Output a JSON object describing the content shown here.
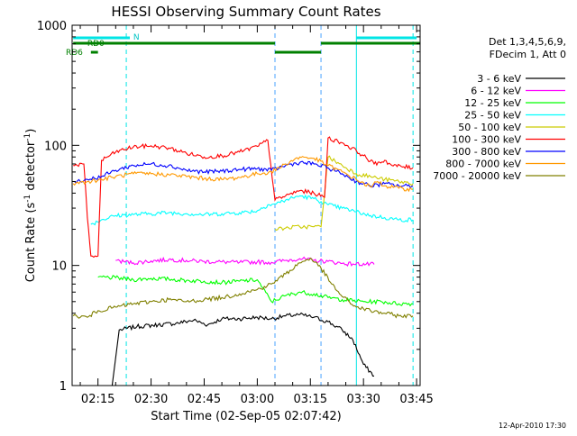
{
  "chart_data": {
    "type": "line",
    "title": "HESSI Observing Summary Count Rates",
    "xlabel": "Start Time (02-Sep-05 02:07:42)",
    "ylabel_main": "Count Rate (s",
    "ylabel_sup1": "-1",
    "ylabel_mid": " detector",
    "ylabel_sup2": "-1",
    "ylabel_end": ")",
    "yscale": "log",
    "xlim": [
      "02:07:42",
      "03:46:00"
    ],
    "ylim": [
      1,
      1000
    ],
    "x_ticks": [
      "02:15",
      "02:30",
      "02:45",
      "03:00",
      "03:15",
      "03:30",
      "03:45"
    ],
    "y_ticks": [
      "1",
      "10",
      "100",
      "1000"
    ],
    "legend_header": [
      "Det 1,3,4,5,6,9,",
      "FDecim 1, Att 0"
    ],
    "timestamp": "12-Apr-2010 17:30",
    "flags": {
      "labels": {
        "N": "N",
        "RD0": "RD0",
        "RD6": "RD6"
      },
      "n_bars": [
        [
          "02:08",
          "02:24"
        ],
        [
          "03:28",
          "03:45"
        ]
      ],
      "rd0_bars": [
        [
          "02:08",
          "03:05"
        ],
        [
          "03:18",
          "03:46"
        ]
      ],
      "rd6_bars": [
        [
          "02:13",
          "02:15"
        ],
        [
          "03:05",
          "03:18"
        ]
      ]
    },
    "vlines": {
      "solid": [
        "02:07:42",
        "03:28"
      ],
      "dashed": [
        "02:23",
        "03:44"
      ],
      "blue_dashed": [
        "03:05",
        "03:18"
      ]
    },
    "series": [
      {
        "name": "3 - 6 keV",
        "color": "#000000",
        "points": [
          [
            "02:19",
            0.0
          ],
          [
            "02:21",
            2.9
          ],
          [
            "02:26",
            3.1
          ],
          [
            "02:32",
            3.2
          ],
          [
            "02:37",
            3.3
          ],
          [
            "02:42",
            3.5
          ],
          [
            "02:46",
            3.2
          ],
          [
            "02:50",
            3.6
          ],
          [
            "02:55",
            3.6
          ],
          [
            "03:00",
            3.7
          ],
          [
            "03:04",
            3.6
          ],
          [
            "03:08",
            3.8
          ],
          [
            "03:12",
            3.9
          ],
          [
            "03:16",
            3.7
          ],
          [
            "03:20",
            3.4
          ],
          [
            "03:24",
            2.9
          ],
          [
            "03:27",
            2.4
          ],
          [
            "03:30",
            1.5
          ],
          [
            "03:33",
            1.2
          ]
        ]
      },
      {
        "name": "6 - 12 keV",
        "color": "#ff00ff",
        "points": [
          [
            "02:20",
            11.0
          ],
          [
            "02:25",
            10.5
          ],
          [
            "02:30",
            10.9
          ],
          [
            "02:35",
            11.2
          ],
          [
            "02:40",
            11.0
          ],
          [
            "02:45",
            10.8
          ],
          [
            "02:50",
            10.7
          ],
          [
            "02:55",
            10.6
          ],
          [
            "03:00",
            10.7
          ],
          [
            "03:04",
            10.6
          ],
          [
            "03:08",
            11.0
          ],
          [
            "03:12",
            11.4
          ],
          [
            "03:16",
            11.0
          ],
          [
            "03:20",
            10.8
          ],
          [
            "03:24",
            10.4
          ],
          [
            "03:27",
            10.3
          ],
          [
            "03:33",
            10.2
          ]
        ]
      },
      {
        "name": "12 - 25 keV",
        "color": "#00ff00",
        "points": [
          [
            "02:15",
            8.0
          ],
          [
            "02:20",
            7.9
          ],
          [
            "02:25",
            7.6
          ],
          [
            "02:30",
            7.8
          ],
          [
            "02:35",
            7.7
          ],
          [
            "02:40",
            7.5
          ],
          [
            "02:45",
            7.4
          ],
          [
            "02:50",
            7.2
          ],
          [
            "02:55",
            7.4
          ],
          [
            "03:00",
            7.6
          ],
          [
            "03:04",
            5.0
          ],
          [
            "03:08",
            5.6
          ],
          [
            "03:12",
            6.0
          ],
          [
            "03:16",
            5.8
          ],
          [
            "03:20",
            5.4
          ],
          [
            "03:24",
            5.2
          ],
          [
            "03:30",
            5.0
          ],
          [
            "03:35",
            5.0
          ],
          [
            "03:40",
            4.8
          ],
          [
            "03:44",
            4.8
          ]
        ]
      },
      {
        "name": "25 - 50 keV",
        "color": "#00ffff",
        "points": [
          [
            "02:13",
            22.0
          ],
          [
            "02:16",
            24.0
          ],
          [
            "02:20",
            26.0
          ],
          [
            "02:25",
            26.5
          ],
          [
            "02:30",
            27.0
          ],
          [
            "02:35",
            27.5
          ],
          [
            "02:40",
            27.0
          ],
          [
            "02:45",
            26.5
          ],
          [
            "02:50",
            27.0
          ],
          [
            "02:55",
            27.5
          ],
          [
            "03:00",
            28.5
          ],
          [
            "03:03",
            32.0
          ],
          [
            "03:05",
            32.5
          ],
          [
            "03:08",
            35.0
          ],
          [
            "03:12",
            38.0
          ],
          [
            "03:16",
            36.0
          ],
          [
            "03:18",
            34.0
          ],
          [
            "03:20",
            32.0
          ],
          [
            "03:24",
            30.0
          ],
          [
            "03:28",
            28.0
          ],
          [
            "03:32",
            26.0
          ],
          [
            "03:36",
            25.0
          ],
          [
            "03:40",
            24.0
          ],
          [
            "03:44",
            24.0
          ]
        ]
      },
      {
        "name": "50 - 100 keV",
        "color": "#cccc00",
        "points": [
          [
            "03:05",
            20.0
          ],
          [
            "03:08",
            20.5
          ],
          [
            "03:12",
            21.0
          ],
          [
            "03:16",
            21.0
          ],
          [
            "03:18",
            21.0
          ],
          [
            "03:20",
            80.0
          ],
          [
            "03:24",
            68.0
          ],
          [
            "03:28",
            58.0
          ],
          [
            "03:32",
            55.0
          ],
          [
            "03:36",
            52.0
          ],
          [
            "03:40",
            50.0
          ],
          [
            "03:44",
            48.0
          ]
        ]
      },
      {
        "name": "100 - 300 keV",
        "color": "#ff0000",
        "points": [
          [
            "02:08",
            68.0
          ],
          [
            "02:11",
            70.0
          ],
          [
            "02:12",
            25.0
          ],
          [
            "02:13",
            12.0
          ],
          [
            "02:15",
            12.0
          ],
          [
            "02:16",
            75.0
          ],
          [
            "02:20",
            88.0
          ],
          [
            "02:25",
            97.0
          ],
          [
            "02:30",
            99.0
          ],
          [
            "02:35",
            95.0
          ],
          [
            "02:40",
            86.0
          ],
          [
            "02:45",
            80.0
          ],
          [
            "02:50",
            82.0
          ],
          [
            "02:55",
            88.0
          ],
          [
            "03:00",
            98.0
          ],
          [
            "03:03",
            110.0
          ],
          [
            "03:05",
            35.0
          ],
          [
            "03:08",
            38.0
          ],
          [
            "03:12",
            42.0
          ],
          [
            "03:16",
            40.0
          ],
          [
            "03:19",
            37.0
          ],
          [
            "03:20",
            115.0
          ],
          [
            "03:24",
            105.0
          ],
          [
            "03:28",
            90.0
          ],
          [
            "03:30",
            82.0
          ],
          [
            "03:33",
            70.0
          ],
          [
            "03:36",
            75.0
          ],
          [
            "03:38",
            68.0
          ],
          [
            "03:44",
            65.0
          ]
        ]
      },
      {
        "name": "300 - 800 keV",
        "color": "#0000ff",
        "points": [
          [
            "02:08",
            50.0
          ],
          [
            "02:12",
            52.0
          ],
          [
            "02:16",
            55.0
          ],
          [
            "02:20",
            62.0
          ],
          [
            "02:25",
            68.0
          ],
          [
            "02:30",
            70.0
          ],
          [
            "02:35",
            68.0
          ],
          [
            "02:40",
            62.0
          ],
          [
            "02:45",
            60.0
          ],
          [
            "02:50",
            61.0
          ],
          [
            "02:55",
            63.0
          ],
          [
            "03:00",
            64.0
          ],
          [
            "03:04",
            62.0
          ],
          [
            "03:08",
            68.0
          ],
          [
            "03:12",
            72.0
          ],
          [
            "03:16",
            70.0
          ],
          [
            "03:20",
            65.0
          ],
          [
            "03:24",
            58.0
          ],
          [
            "03:28",
            50.0
          ],
          [
            "03:32",
            46.0
          ],
          [
            "03:36",
            48.0
          ],
          [
            "03:40",
            46.0
          ],
          [
            "03:44",
            46.0
          ]
        ]
      },
      {
        "name": "800 - 7000 keV",
        "color": "#ff9900",
        "points": [
          [
            "02:08",
            48.0
          ],
          [
            "02:12",
            50.0
          ],
          [
            "02:16",
            52.0
          ],
          [
            "02:20",
            55.0
          ],
          [
            "02:25",
            58.0
          ],
          [
            "02:30",
            58.0
          ],
          [
            "02:35",
            57.0
          ],
          [
            "02:40",
            55.0
          ],
          [
            "02:45",
            53.0
          ],
          [
            "02:50",
            52.0
          ],
          [
            "02:55",
            54.0
          ],
          [
            "03:00",
            58.0
          ],
          [
            "03:04",
            60.0
          ],
          [
            "03:08",
            70.0
          ],
          [
            "03:12",
            80.0
          ],
          [
            "03:16",
            78.0
          ],
          [
            "03:20",
            68.0
          ],
          [
            "03:24",
            60.0
          ],
          [
            "03:28",
            52.0
          ],
          [
            "03:32",
            45.0
          ],
          [
            "03:34",
            50.0
          ],
          [
            "03:36",
            46.0
          ],
          [
            "03:40",
            44.0
          ],
          [
            "03:44",
            43.0
          ]
        ]
      },
      {
        "name": "7000 - 20000 keV",
        "color": "#808000",
        "points": [
          [
            "02:08",
            3.8
          ],
          [
            "02:12",
            3.7
          ],
          [
            "02:15",
            4.2
          ],
          [
            "02:20",
            4.5
          ],
          [
            "02:25",
            4.8
          ],
          [
            "02:30",
            5.0
          ],
          [
            "02:35",
            5.2
          ],
          [
            "02:40",
            5.0
          ],
          [
            "02:45",
            5.2
          ],
          [
            "02:50",
            5.4
          ],
          [
            "02:55",
            5.8
          ],
          [
            "03:00",
            6.3
          ],
          [
            "03:04",
            7.0
          ],
          [
            "03:08",
            8.5
          ],
          [
            "03:12",
            10.5
          ],
          [
            "03:15",
            11.5
          ],
          [
            "03:18",
            9.5
          ],
          [
            "03:21",
            7.0
          ],
          [
            "03:24",
            5.5
          ],
          [
            "03:28",
            4.5
          ],
          [
            "03:32",
            4.2
          ],
          [
            "03:36",
            4.0
          ],
          [
            "03:40",
            3.8
          ],
          [
            "03:44",
            3.8
          ]
        ]
      }
    ]
  }
}
